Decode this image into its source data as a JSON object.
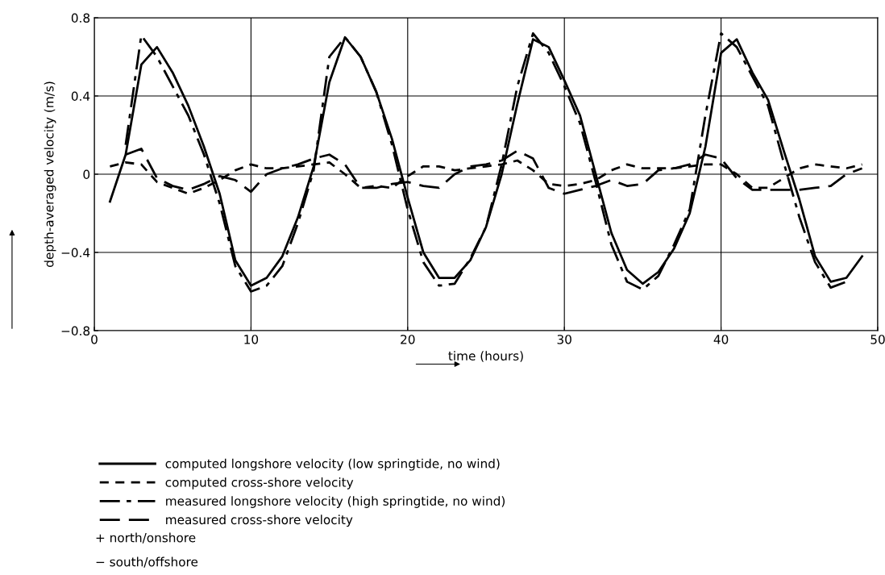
{
  "chart_data": {
    "type": "line",
    "xlabel": "time (hours)",
    "ylabel": "depth-averaged velocity (m/s)",
    "xlim": [
      0,
      50
    ],
    "xticks": [
      0,
      10,
      20,
      30,
      40,
      50
    ],
    "ylim": [
      -0.8,
      0.8
    ],
    "yticks": [
      {
        "value": -0.8,
        "label": "−0.8"
      },
      {
        "value": -0.4,
        "label": "−0.4"
      },
      0,
      0.4,
      0.8
    ],
    "grid": true,
    "legend": "bottom",
    "marker": "none",
    "annotations": [
      "+ north/onshore",
      "− south/offshore"
    ],
    "series": [
      {
        "name": "computed longshore velocity (low springtide, no wind)",
        "color": "#000000",
        "line_style": "solid",
        "x": [
          1,
          2,
          3,
          4,
          5,
          6,
          7,
          8,
          9,
          10,
          11,
          12,
          13,
          14,
          15,
          16,
          17,
          18,
          19,
          20,
          21,
          22,
          23,
          24,
          25,
          26,
          27,
          28,
          29,
          30,
          31,
          32,
          33,
          34,
          35,
          36,
          37,
          38,
          39,
          40,
          41,
          42,
          43,
          44,
          45,
          46,
          47,
          48,
          49
        ],
        "values": [
          -0.14,
          0.1,
          0.56,
          0.65,
          0.52,
          0.35,
          0.14,
          -0.1,
          -0.44,
          -0.57,
          -0.53,
          -0.42,
          -0.22,
          0.04,
          0.47,
          0.7,
          0.6,
          0.42,
          0.18,
          -0.12,
          -0.4,
          -0.53,
          -0.53,
          -0.44,
          -0.27,
          0.0,
          0.36,
          0.69,
          0.65,
          0.48,
          0.3,
          0.0,
          -0.3,
          -0.49,
          -0.56,
          -0.5,
          -0.38,
          -0.2,
          0.14,
          0.62,
          0.69,
          0.52,
          0.38,
          0.12,
          -0.13,
          -0.42,
          -0.55,
          -0.53,
          -0.42
        ]
      },
      {
        "name": "computed cross-shore velocity",
        "color": "#000000",
        "line_style": "dashed",
        "x": [
          1,
          2,
          3,
          4,
          5,
          6,
          7,
          8,
          9,
          10,
          11,
          12,
          13,
          14,
          15,
          16,
          17,
          18,
          19,
          20,
          21,
          22,
          23,
          24,
          25,
          26,
          27,
          28,
          29,
          30,
          31,
          32,
          33,
          34,
          35,
          36,
          37,
          38,
          39,
          40,
          41,
          42,
          43,
          44,
          45,
          46,
          47,
          48,
          49
        ],
        "values": [
          0.04,
          0.06,
          0.05,
          -0.04,
          -0.07,
          -0.1,
          -0.07,
          -0.03,
          0.02,
          0.05,
          0.03,
          0.03,
          0.04,
          0.05,
          0.06,
          0.0,
          -0.07,
          -0.06,
          -0.07,
          -0.01,
          0.04,
          0.04,
          0.02,
          0.03,
          0.04,
          0.05,
          0.07,
          0.02,
          -0.05,
          -0.06,
          -0.05,
          -0.03,
          0.02,
          0.05,
          0.03,
          0.03,
          0.03,
          0.04,
          0.05,
          0.05,
          0.0,
          -0.07,
          -0.07,
          -0.02,
          0.03,
          0.05,
          0.04,
          0.03,
          0.05
        ]
      },
      {
        "name": "measured longshore velocity (high springtide, no wind)",
        "color": "#000000",
        "line_style": "dashdot",
        "x": [
          2,
          3,
          4,
          5,
          6,
          7,
          8,
          9,
          10,
          11,
          12,
          13,
          14,
          15,
          16,
          17,
          18,
          19,
          20,
          21,
          22,
          23,
          24,
          25,
          26,
          27,
          28,
          29,
          30,
          31,
          32,
          33,
          34,
          35,
          36,
          37,
          38,
          39,
          40,
          41,
          42,
          43,
          44,
          45,
          46,
          47,
          48
        ],
        "values": [
          0.15,
          0.71,
          0.6,
          0.45,
          0.3,
          0.1,
          -0.15,
          -0.47,
          -0.6,
          -0.57,
          -0.47,
          -0.25,
          0.02,
          0.6,
          0.7,
          0.6,
          0.42,
          0.15,
          -0.18,
          -0.45,
          -0.57,
          -0.56,
          -0.43,
          -0.27,
          0.05,
          0.45,
          0.72,
          0.62,
          0.45,
          0.26,
          -0.04,
          -0.36,
          -0.55,
          -0.59,
          -0.52,
          -0.36,
          -0.18,
          0.3,
          0.72,
          0.65,
          0.5,
          0.35,
          0.06,
          -0.22,
          -0.45,
          -0.58,
          -0.55
        ]
      },
      {
        "name": "measured cross-shore velocity",
        "color": "#000000",
        "line_style": "longdash",
        "x": [
          2,
          3,
          4,
          5,
          6,
          7,
          8,
          9,
          10,
          11,
          12,
          13,
          14,
          15,
          16,
          17,
          18,
          19,
          20,
          21,
          22,
          23,
          24,
          25,
          26,
          27,
          28,
          29,
          30,
          31,
          32,
          33,
          34,
          35,
          36,
          37,
          38,
          39,
          40,
          41,
          42,
          43,
          44,
          45,
          46,
          47,
          48,
          49
        ],
        "values": [
          0.1,
          0.13,
          -0.02,
          -0.06,
          -0.08,
          -0.05,
          -0.01,
          -0.03,
          -0.09,
          0.0,
          0.03,
          0.05,
          0.08,
          0.1,
          0.05,
          -0.07,
          -0.07,
          -0.05,
          -0.04,
          -0.06,
          -0.07,
          0.0,
          0.04,
          0.05,
          0.07,
          0.12,
          0.08,
          -0.07,
          -0.1,
          -0.08,
          -0.06,
          -0.03,
          -0.06,
          -0.05,
          0.02,
          0.03,
          0.05,
          0.1,
          0.08,
          -0.02,
          -0.08,
          -0.08,
          -0.08,
          -0.08,
          -0.07,
          -0.06,
          0.0,
          0.03
        ]
      }
    ]
  }
}
